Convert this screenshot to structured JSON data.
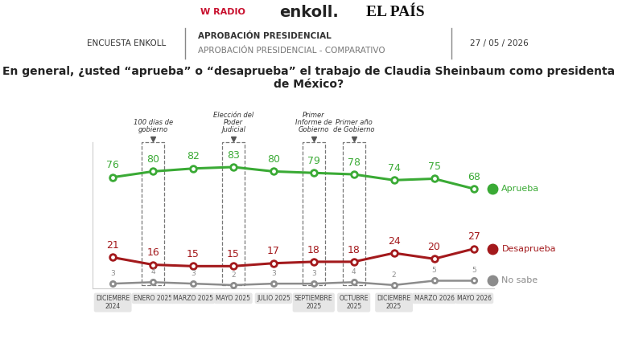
{
  "chart_data": {
    "type": "line",
    "header": {
      "logos": [
        "W RADIO",
        "enkoll.",
        "EL PAÍS"
      ],
      "survey": "ENCUESTA ENKOLL",
      "section": "APROBACIÓN PRESIDENCIAL",
      "subsection": "APROBACIÓN PRESIDENCIAL - COMPARATIVO",
      "date": "27 / 05 / 2026"
    },
    "title": "En general, ¿usted “aprueba” o “desaprueba” el trabajo de Claudia Sheinbaum como presidenta de México?",
    "categories": [
      "DICIEMBRE 2024",
      "ENERO 2025",
      "MARZO 2025",
      "MAYO 2025",
      "JULIO 2025",
      "SEPTIEMBRE 2025",
      "OCTUBRE 2025",
      "DICIEMBRE 2025",
      "MARZO 2026",
      "MAYO 2026"
    ],
    "series": [
      {
        "name": "Aprueba",
        "color": "#3aaa35",
        "marker": "o",
        "values": [
          76,
          80,
          82,
          83,
          80,
          79,
          78,
          74,
          75,
          68
        ]
      },
      {
        "name": "Desaprueba",
        "color": "#a3191c",
        "marker": "o",
        "values": [
          21,
          16,
          15,
          15,
          17,
          18,
          18,
          24,
          20,
          27
        ]
      },
      {
        "name": "No sabe",
        "color": "#8c8c8c",
        "marker": "o",
        "values": [
          3,
          4,
          3,
          2,
          3,
          3,
          4,
          2,
          5,
          5
        ]
      }
    ],
    "annotations": [
      {
        "category": "ENERO 2025",
        "text": "100 días de gobierno"
      },
      {
        "category": "MAYO 2025",
        "text": "Elección del Poder Judicial"
      },
      {
        "category": "SEPTIEMBRE 2025",
        "text": "Primer Informe de Gobierno"
      },
      {
        "category": "OCTUBRE 2025",
        "text": "Primer año de Gobierno"
      }
    ],
    "ylim": [
      0,
      100
    ],
    "grid": false,
    "data_labels": true,
    "tick_labels": "x"
  }
}
